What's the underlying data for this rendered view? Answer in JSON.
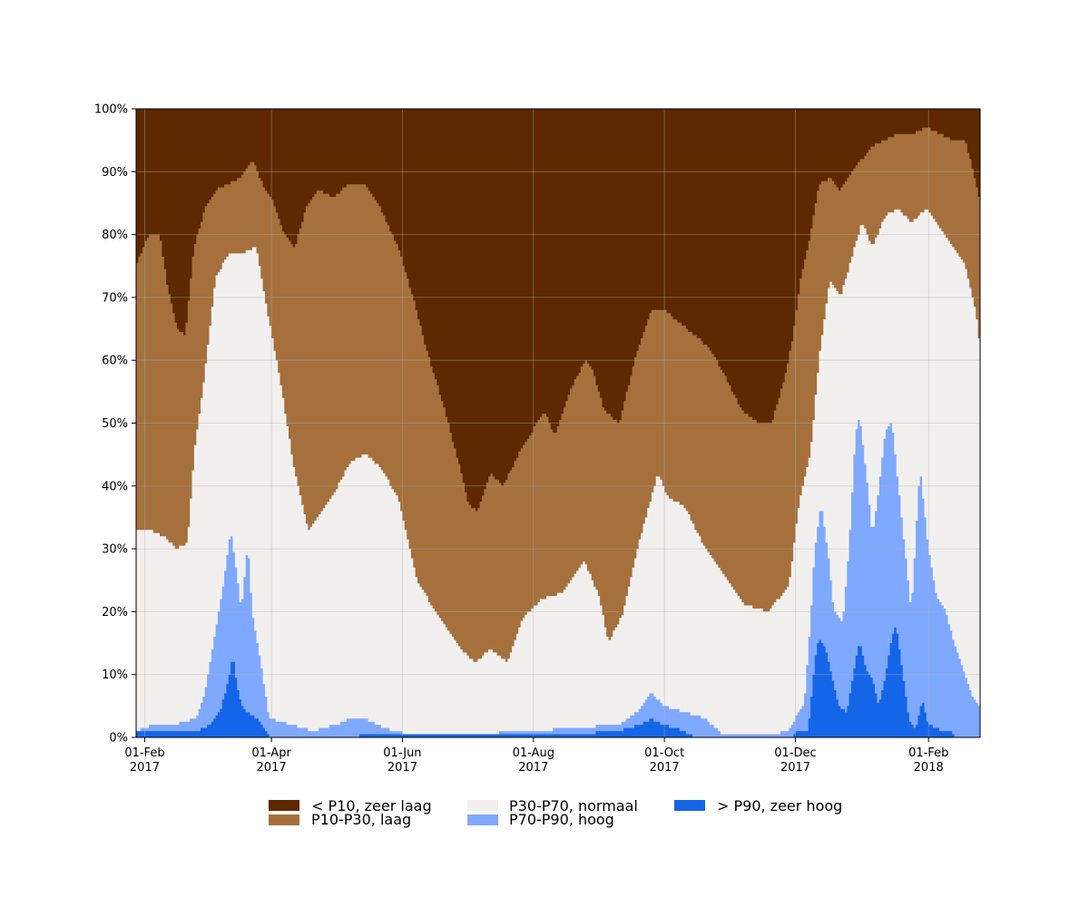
{
  "chart_data": {
    "type": "area",
    "stacked": true,
    "x_range": [
      "2017-01-28",
      "2018-02-25"
    ],
    "ylim": [
      0,
      100
    ],
    "y_unit": "%",
    "grid": true,
    "legend_placement": "bottom",
    "x_ticks": [
      {
        "date": "2017-02-01",
        "line1": "01-Feb",
        "line2": "2017"
      },
      {
        "date": "2017-04-01",
        "line1": "01-Apr",
        "line2": "2017"
      },
      {
        "date": "2017-06-01",
        "line1": "01-Jun",
        "line2": "2017"
      },
      {
        "date": "2017-08-01",
        "line1": "01-Aug",
        "line2": "2017"
      },
      {
        "date": "2017-10-01",
        "line1": "01-Oct",
        "line2": "2017"
      },
      {
        "date": "2017-12-01",
        "line1": "01-Dec",
        "line2": "2017"
      },
      {
        "date": "2018-02-01",
        "line1": "01-Feb",
        "line2": "2018"
      }
    ],
    "y_ticks": [
      {
        "value": 0,
        "label": "0%"
      },
      {
        "value": 10,
        "label": "10%"
      },
      {
        "value": 20,
        "label": "20%"
      },
      {
        "value": 30,
        "label": "30%"
      },
      {
        "value": 40,
        "label": "40%"
      },
      {
        "value": 50,
        "label": "50%"
      },
      {
        "value": 60,
        "label": "60%"
      },
      {
        "value": 70,
        "label": "70%"
      },
      {
        "value": 80,
        "label": "80%"
      },
      {
        "value": 90,
        "label": "90%"
      },
      {
        "value": 100,
        "label": "100%"
      }
    ],
    "series": [
      {
        "name": "> P90, zeer hoog",
        "color": "#1565e8",
        "points": [
          [
            "2017-01-28",
            1
          ],
          [
            "2017-02-26",
            1
          ],
          [
            "2017-03-03",
            2
          ],
          [
            "2017-03-08",
            4
          ],
          [
            "2017-03-12",
            9
          ],
          [
            "2017-03-14",
            13
          ],
          [
            "2017-03-16",
            8
          ],
          [
            "2017-03-18",
            5
          ],
          [
            "2017-03-21",
            4
          ],
          [
            "2017-03-25",
            3
          ],
          [
            "2017-03-29",
            1
          ],
          [
            "2017-04-01",
            0
          ],
          [
            "2017-05-20",
            0.3
          ],
          [
            "2017-06-15",
            0.5
          ],
          [
            "2017-07-20",
            0.5
          ],
          [
            "2017-08-20",
            0.5
          ],
          [
            "2017-09-10",
            1
          ],
          [
            "2017-09-20",
            2
          ],
          [
            "2017-09-25",
            3
          ],
          [
            "2017-09-30",
            2
          ],
          [
            "2017-10-10",
            1
          ],
          [
            "2017-10-15",
            0
          ],
          [
            "2017-11-30",
            0
          ],
          [
            "2017-12-02",
            1
          ],
          [
            "2017-12-07",
            1
          ],
          [
            "2017-12-10",
            12
          ],
          [
            "2017-12-12",
            16
          ],
          [
            "2017-12-15",
            14
          ],
          [
            "2017-12-18",
            10
          ],
          [
            "2017-12-21",
            5
          ],
          [
            "2017-12-25",
            4
          ],
          [
            "2017-12-29",
            12
          ],
          [
            "2017-12-31",
            15
          ],
          [
            "2018-01-03",
            11
          ],
          [
            "2018-01-06",
            9
          ],
          [
            "2018-01-09",
            5
          ],
          [
            "2018-01-12",
            10
          ],
          [
            "2018-01-15",
            16
          ],
          [
            "2018-01-17",
            18
          ],
          [
            "2018-01-20",
            10
          ],
          [
            "2018-01-23",
            3
          ],
          [
            "2018-01-26",
            1
          ],
          [
            "2018-01-29",
            6
          ],
          [
            "2018-02-01",
            2
          ],
          [
            "2018-02-08",
            1
          ],
          [
            "2018-02-12",
            1
          ],
          [
            "2018-02-13",
            0
          ],
          [
            "2018-02-25",
            0
          ]
        ]
      },
      {
        "name": "P70-P90, hoog",
        "color": "#7fa8ff",
        "points": [
          [
            "2017-01-28",
            1
          ],
          [
            "2017-02-05",
            2
          ],
          [
            "2017-02-15",
            2
          ],
          [
            "2017-02-25",
            3
          ],
          [
            "2017-03-01",
            7
          ],
          [
            "2017-03-05",
            15
          ],
          [
            "2017-03-10",
            25
          ],
          [
            "2017-03-13",
            33
          ],
          [
            "2017-03-16",
            26
          ],
          [
            "2017-03-18",
            20
          ],
          [
            "2017-03-21",
            31
          ],
          [
            "2017-03-23",
            20
          ],
          [
            "2017-03-27",
            12
          ],
          [
            "2017-03-31",
            3
          ],
          [
            "2017-04-10",
            2
          ],
          [
            "2017-04-20",
            1
          ],
          [
            "2017-05-01",
            2
          ],
          [
            "2017-05-08",
            3
          ],
          [
            "2017-05-15",
            3
          ],
          [
            "2017-05-20",
            2
          ],
          [
            "2017-05-28",
            1
          ],
          [
            "2017-06-05",
            0.5
          ],
          [
            "2017-07-01",
            0.5
          ],
          [
            "2017-08-01",
            1
          ],
          [
            "2017-08-20",
            1.5
          ],
          [
            "2017-09-10",
            2
          ],
          [
            "2017-09-18",
            4
          ],
          [
            "2017-09-25",
            7
          ],
          [
            "2017-10-01",
            5
          ],
          [
            "2017-10-10",
            4
          ],
          [
            "2017-10-20",
            3
          ],
          [
            "2017-10-28",
            0.5
          ],
          [
            "2017-11-20",
            0.5
          ],
          [
            "2017-11-28",
            1
          ],
          [
            "2017-12-01",
            3
          ],
          [
            "2017-12-05",
            5
          ],
          [
            "2017-12-08",
            18
          ],
          [
            "2017-12-10",
            30
          ],
          [
            "2017-12-13",
            37
          ],
          [
            "2017-12-16",
            30
          ],
          [
            "2017-12-19",
            20
          ],
          [
            "2017-12-23",
            18
          ],
          [
            "2017-12-26",
            30
          ],
          [
            "2017-12-29",
            48
          ],
          [
            "2017-12-31",
            51
          ],
          [
            "2018-01-03",
            42
          ],
          [
            "2018-01-06",
            32
          ],
          [
            "2018-01-09",
            40
          ],
          [
            "2018-01-12",
            49
          ],
          [
            "2018-01-15",
            50
          ],
          [
            "2018-01-18",
            40
          ],
          [
            "2018-01-21",
            30
          ],
          [
            "2018-01-24",
            20
          ],
          [
            "2018-01-28",
            43
          ],
          [
            "2018-02-01",
            30
          ],
          [
            "2018-02-05",
            22
          ],
          [
            "2018-02-09",
            20
          ],
          [
            "2018-02-13",
            15
          ],
          [
            "2018-02-18",
            10
          ],
          [
            "2018-02-22",
            6
          ],
          [
            "2018-02-25",
            5
          ]
        ]
      },
      {
        "name": "P30-P70, normaal",
        "color": "#f2f0ef",
        "points": [
          [
            "2017-01-28",
            33
          ],
          [
            "2017-02-03",
            33
          ],
          [
            "2017-02-10",
            32
          ],
          [
            "2017-02-16",
            30
          ],
          [
            "2017-02-21",
            31
          ],
          [
            "2017-02-24",
            45
          ],
          [
            "2017-03-01",
            58
          ],
          [
            "2017-03-06",
            73
          ],
          [
            "2017-03-12",
            77
          ],
          [
            "2017-03-18",
            77
          ],
          [
            "2017-03-25",
            78
          ],
          [
            "2017-03-30",
            68
          ],
          [
            "2017-04-05",
            57
          ],
          [
            "2017-04-12",
            42
          ],
          [
            "2017-04-18",
            33
          ],
          [
            "2017-04-25",
            36
          ],
          [
            "2017-05-02",
            40
          ],
          [
            "2017-05-08",
            44
          ],
          [
            "2017-05-15",
            45
          ],
          [
            "2017-05-22",
            43
          ],
          [
            "2017-05-30",
            38
          ],
          [
            "2017-06-08",
            25
          ],
          [
            "2017-06-18",
            19
          ],
          [
            "2017-06-28",
            14
          ],
          [
            "2017-07-05",
            12
          ],
          [
            "2017-07-12",
            14
          ],
          [
            "2017-07-20",
            12
          ],
          [
            "2017-07-27",
            19
          ],
          [
            "2017-08-05",
            22
          ],
          [
            "2017-08-15",
            23
          ],
          [
            "2017-08-25",
            28
          ],
          [
            "2017-09-01",
            22
          ],
          [
            "2017-09-05",
            15
          ],
          [
            "2017-09-12",
            20
          ],
          [
            "2017-09-20",
            32
          ],
          [
            "2017-09-28",
            42
          ],
          [
            "2017-10-03",
            38
          ],
          [
            "2017-10-10",
            37
          ],
          [
            "2017-10-20",
            30
          ],
          [
            "2017-10-30",
            25
          ],
          [
            "2017-11-08",
            21
          ],
          [
            "2017-11-18",
            20
          ],
          [
            "2017-11-28",
            24
          ],
          [
            "2017-12-03",
            38
          ],
          [
            "2017-12-08",
            45
          ],
          [
            "2017-12-12",
            60
          ],
          [
            "2017-12-17",
            73
          ],
          [
            "2017-12-22",
            70
          ],
          [
            "2017-12-27",
            76
          ],
          [
            "2018-01-01",
            82
          ],
          [
            "2018-01-06",
            78
          ],
          [
            "2018-01-12",
            83
          ],
          [
            "2018-01-18",
            84
          ],
          [
            "2018-01-24",
            82
          ],
          [
            "2018-01-31",
            84
          ],
          [
            "2018-02-06",
            81
          ],
          [
            "2018-02-12",
            78
          ],
          [
            "2018-02-18",
            75
          ],
          [
            "2018-02-23",
            68
          ],
          [
            "2018-02-25",
            62
          ]
        ]
      },
      {
        "name": "P10-P30, laag",
        "color": "#a5703c",
        "points": [
          [
            "2017-01-28",
            75
          ],
          [
            "2017-02-03",
            80
          ],
          [
            "2017-02-08",
            80
          ],
          [
            "2017-02-12",
            71
          ],
          [
            "2017-02-16",
            65
          ],
          [
            "2017-02-20",
            64
          ],
          [
            "2017-02-24",
            78
          ],
          [
            "2017-03-01",
            84
          ],
          [
            "2017-03-06",
            87
          ],
          [
            "2017-03-12",
            88
          ],
          [
            "2017-03-18",
            89
          ],
          [
            "2017-03-23",
            92
          ],
          [
            "2017-03-28",
            88
          ],
          [
            "2017-04-02",
            85
          ],
          [
            "2017-04-07",
            80
          ],
          [
            "2017-04-12",
            78
          ],
          [
            "2017-04-17",
            84
          ],
          [
            "2017-04-23",
            87
          ],
          [
            "2017-04-30",
            86
          ],
          [
            "2017-05-07",
            88
          ],
          [
            "2017-05-15",
            88
          ],
          [
            "2017-05-22",
            84
          ],
          [
            "2017-05-30",
            78
          ],
          [
            "2017-06-06",
            70
          ],
          [
            "2017-06-12",
            62
          ],
          [
            "2017-06-20",
            53
          ],
          [
            "2017-06-27",
            44
          ],
          [
            "2017-07-02",
            37
          ],
          [
            "2017-07-06",
            36
          ],
          [
            "2017-07-12",
            42
          ],
          [
            "2017-07-18",
            40
          ],
          [
            "2017-07-25",
            45
          ],
          [
            "2017-08-01",
            49
          ],
          [
            "2017-08-06",
            52
          ],
          [
            "2017-08-11",
            48
          ],
          [
            "2017-08-18",
            55
          ],
          [
            "2017-08-25",
            60
          ],
          [
            "2017-08-29",
            58
          ],
          [
            "2017-09-03",
            52
          ],
          [
            "2017-09-10",
            50
          ],
          [
            "2017-09-18",
            61
          ],
          [
            "2017-09-25",
            68
          ],
          [
            "2017-10-01",
            68
          ],
          [
            "2017-10-08",
            66
          ],
          [
            "2017-10-15",
            64
          ],
          [
            "2017-10-22",
            62
          ],
          [
            "2017-10-30",
            57
          ],
          [
            "2017-11-06",
            52
          ],
          [
            "2017-11-14",
            50
          ],
          [
            "2017-11-20",
            50
          ],
          [
            "2017-11-26",
            57
          ],
          [
            "2017-11-30",
            64
          ],
          [
            "2017-12-03",
            72
          ],
          [
            "2017-12-08",
            80
          ],
          [
            "2017-12-12",
            88
          ],
          [
            "2017-12-17",
            89
          ],
          [
            "2017-12-22",
            87
          ],
          [
            "2017-12-27",
            90
          ],
          [
            "2018-01-01",
            92
          ],
          [
            "2018-01-06",
            94
          ],
          [
            "2018-01-12",
            95
          ],
          [
            "2018-01-18",
            96
          ],
          [
            "2018-01-24",
            96
          ],
          [
            "2018-01-31",
            97
          ],
          [
            "2018-02-06",
            96
          ],
          [
            "2018-02-12",
            95
          ],
          [
            "2018-02-18",
            95
          ],
          [
            "2018-02-22",
            90
          ],
          [
            "2018-02-25",
            85
          ]
        ]
      }
    ],
    "top_series": {
      "name": "< P10, zeer laag",
      "color": "#5e2800"
    }
  },
  "legend": [
    {
      "label": "< P10, zeer laag",
      "color": "#5e2800"
    },
    {
      "label": "P10-P30, laag",
      "color": "#a5703c"
    },
    {
      "label": "P30-P70, normaal",
      "color": "#f2f0ef"
    },
    {
      "label": "P70-P90, hoog",
      "color": "#7fa8ff"
    },
    {
      "label": "> P90, zeer hoog",
      "color": "#1565e8"
    }
  ]
}
